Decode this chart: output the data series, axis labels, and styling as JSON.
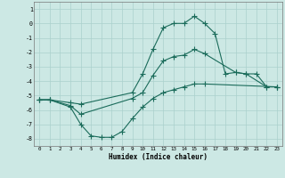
{
  "title": "",
  "xlabel": "Humidex (Indice chaleur)",
  "background_color": "#cce8e4",
  "grid_color": "#aad0cc",
  "line_color": "#1a6b5a",
  "xlim": [
    -0.5,
    23.5
  ],
  "ylim": [
    -8.5,
    1.5
  ],
  "xticks": [
    0,
    1,
    2,
    3,
    4,
    5,
    6,
    7,
    8,
    9,
    10,
    11,
    12,
    13,
    14,
    15,
    16,
    17,
    18,
    19,
    20,
    21,
    22,
    23
  ],
  "yticks": [
    1,
    0,
    -1,
    -2,
    -3,
    -4,
    -5,
    -6,
    -7,
    -8
  ],
  "top_x": [
    0,
    1,
    3,
    4,
    9,
    10,
    11,
    12,
    13,
    14,
    15,
    16,
    17,
    18,
    19,
    20,
    21,
    22,
    23
  ],
  "top_y": [
    -5.3,
    -5.3,
    -5.5,
    -5.6,
    -4.8,
    -3.5,
    -1.8,
    -0.3,
    0.0,
    0.0,
    0.5,
    0.0,
    -0.7,
    -3.5,
    -3.4,
    -3.5,
    -3.5,
    -4.4,
    -4.4
  ],
  "bot_x": [
    0,
    1,
    3,
    4,
    5,
    6,
    7,
    8,
    9,
    10,
    11,
    12,
    13,
    14,
    15,
    16,
    23
  ],
  "bot_y": [
    -5.3,
    -5.3,
    -5.8,
    -7.0,
    -7.8,
    -7.9,
    -7.9,
    -7.5,
    -6.6,
    -5.8,
    -5.2,
    -4.8,
    -4.6,
    -4.4,
    -4.2,
    -4.2,
    -4.4
  ],
  "mid_x": [
    0,
    1,
    3,
    4,
    9,
    10,
    11,
    12,
    13,
    14,
    15,
    16,
    19,
    20,
    22,
    23
  ],
  "mid_y": [
    -5.3,
    -5.3,
    -5.7,
    -6.3,
    -5.2,
    -4.8,
    -3.6,
    -2.6,
    -2.3,
    -2.2,
    -1.8,
    -2.1,
    -3.4,
    -3.5,
    -4.4,
    -4.4
  ]
}
